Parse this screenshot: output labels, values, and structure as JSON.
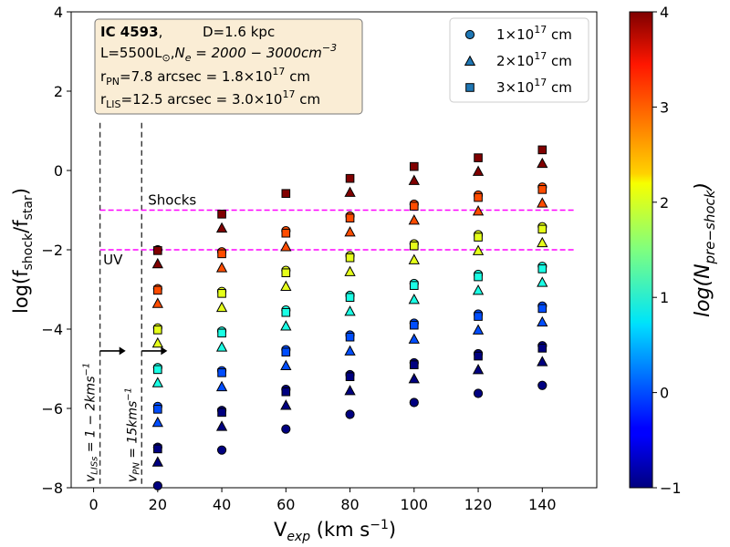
{
  "chart_data": {
    "type": "scatter",
    "x_values": [
      20,
      40,
      60,
      80,
      100,
      120,
      140
    ],
    "xlabel": "Vexp (km s−1)",
    "xlabel_parts": {
      "main": "V",
      "sub": "exp",
      "unit": " (km s",
      "unit_sup": "−1",
      "close": ")"
    },
    "ylabel_parts": {
      "pre": "log(f",
      "sub1": "shock",
      "mid": "/f",
      "sub2": "star",
      "close": ")"
    },
    "xlim": [
      -7,
      157
    ],
    "ylim": [
      -8,
      4
    ],
    "xticks": [
      0,
      20,
      40,
      60,
      80,
      100,
      120,
      140
    ],
    "yticks": [
      -8,
      -6,
      -4,
      -2,
      0,
      2,
      4
    ],
    "xtick_labels": [
      "0",
      "20",
      "40",
      "60",
      "80",
      "100",
      "120",
      "140"
    ],
    "ytick_labels": [
      "−8",
      "−6",
      "−4",
      "−2",
      "0",
      "2",
      "4"
    ],
    "colorbar": {
      "range": [
        -1,
        4
      ],
      "ticks": [
        -1,
        0,
        1,
        2,
        3,
        4
      ],
      "tick_labels": [
        "−1",
        "0",
        "1",
        "2",
        "3",
        "4"
      ],
      "label": "log(Npre−shock)",
      "colormap": "jet"
    },
    "series": [
      {
        "name": "1×10^17 cm",
        "marker": "circle",
        "points": [
          {
            "x": 20,
            "y": -7.95,
            "c": -1
          },
          {
            "x": 20,
            "y": -6.98,
            "c": -1
          },
          {
            "x": 20,
            "y": -5.95,
            "c": 0
          },
          {
            "x": 20,
            "y": -4.97,
            "c": 1
          },
          {
            "x": 20,
            "y": -3.97,
            "c": 2
          },
          {
            "x": 20,
            "y": -2.98,
            "c": 3
          },
          {
            "x": 20,
            "y": -2.0,
            "c": 4
          },
          {
            "x": 40,
            "y": -7.05,
            "c": -1
          },
          {
            "x": 40,
            "y": -6.05,
            "c": -1
          },
          {
            "x": 40,
            "y": -5.05,
            "c": 0
          },
          {
            "x": 40,
            "y": -4.05,
            "c": 1
          },
          {
            "x": 40,
            "y": -3.05,
            "c": 2
          },
          {
            "x": 40,
            "y": -2.05,
            "c": 3
          },
          {
            "x": 60,
            "y": -6.52,
            "c": -1
          },
          {
            "x": 60,
            "y": -5.52,
            "c": -1
          },
          {
            "x": 60,
            "y": -4.52,
            "c": 0
          },
          {
            "x": 60,
            "y": -3.52,
            "c": 1
          },
          {
            "x": 60,
            "y": -2.52,
            "c": 2
          },
          {
            "x": 60,
            "y": -1.52,
            "c": 3
          },
          {
            "x": 80,
            "y": -6.15,
            "c": -1
          },
          {
            "x": 80,
            "y": -5.15,
            "c": -1
          },
          {
            "x": 80,
            "y": -4.15,
            "c": 0
          },
          {
            "x": 80,
            "y": -3.15,
            "c": 1
          },
          {
            "x": 80,
            "y": -2.15,
            "c": 2
          },
          {
            "x": 80,
            "y": -1.15,
            "c": 3
          },
          {
            "x": 100,
            "y": -5.85,
            "c": -1
          },
          {
            "x": 100,
            "y": -4.85,
            "c": -1
          },
          {
            "x": 100,
            "y": -3.85,
            "c": 0
          },
          {
            "x": 100,
            "y": -2.85,
            "c": 1
          },
          {
            "x": 100,
            "y": -1.85,
            "c": 2
          },
          {
            "x": 100,
            "y": -0.85,
            "c": 3
          },
          {
            "x": 120,
            "y": -5.62,
            "c": -1
          },
          {
            "x": 120,
            "y": -4.62,
            "c": -1
          },
          {
            "x": 120,
            "y": -3.62,
            "c": 0
          },
          {
            "x": 120,
            "y": -2.62,
            "c": 1
          },
          {
            "x": 120,
            "y": -1.62,
            "c": 2
          },
          {
            "x": 120,
            "y": -0.62,
            "c": 3
          },
          {
            "x": 140,
            "y": -5.42,
            "c": -1
          },
          {
            "x": 140,
            "y": -4.42,
            "c": -1
          },
          {
            "x": 140,
            "y": -3.42,
            "c": 0
          },
          {
            "x": 140,
            "y": -2.42,
            "c": 1
          },
          {
            "x": 140,
            "y": -1.42,
            "c": 2
          },
          {
            "x": 140,
            "y": -0.42,
            "c": 3
          }
        ]
      },
      {
        "name": "2×10^17 cm",
        "marker": "triangle",
        "points": [
          {
            "x": 20,
            "y": -7.35,
            "c": -1
          },
          {
            "x": 20,
            "y": -6.35,
            "c": 0
          },
          {
            "x": 20,
            "y": -5.35,
            "c": 1
          },
          {
            "x": 20,
            "y": -4.35,
            "c": 2
          },
          {
            "x": 20,
            "y": -3.35,
            "c": 3
          },
          {
            "x": 20,
            "y": -2.35,
            "c": 4
          },
          {
            "x": 40,
            "y": -6.45,
            "c": -1
          },
          {
            "x": 40,
            "y": -5.45,
            "c": 0
          },
          {
            "x": 40,
            "y": -4.45,
            "c": 1
          },
          {
            "x": 40,
            "y": -3.45,
            "c": 2
          },
          {
            "x": 40,
            "y": -2.45,
            "c": 3
          },
          {
            "x": 40,
            "y": -1.45,
            "c": 4
          },
          {
            "x": 60,
            "y": -5.92,
            "c": -1
          },
          {
            "x": 60,
            "y": -4.92,
            "c": 0
          },
          {
            "x": 60,
            "y": -3.92,
            "c": 1
          },
          {
            "x": 60,
            "y": -2.92,
            "c": 2
          },
          {
            "x": 60,
            "y": -1.92,
            "c": 3
          },
          {
            "x": 80,
            "y": -5.55,
            "c": -1
          },
          {
            "x": 80,
            "y": -4.55,
            "c": 0
          },
          {
            "x": 80,
            "y": -3.55,
            "c": 1
          },
          {
            "x": 80,
            "y": -2.55,
            "c": 2
          },
          {
            "x": 80,
            "y": -1.55,
            "c": 3
          },
          {
            "x": 80,
            "y": -0.55,
            "c": 4
          },
          {
            "x": 100,
            "y": -5.25,
            "c": -1
          },
          {
            "x": 100,
            "y": -4.25,
            "c": 0
          },
          {
            "x": 100,
            "y": -3.25,
            "c": 1
          },
          {
            "x": 100,
            "y": -2.25,
            "c": 2
          },
          {
            "x": 100,
            "y": -1.25,
            "c": 3
          },
          {
            "x": 100,
            "y": -0.25,
            "c": 4
          },
          {
            "x": 120,
            "y": -5.02,
            "c": -1
          },
          {
            "x": 120,
            "y": -4.02,
            "c": 0
          },
          {
            "x": 120,
            "y": -3.02,
            "c": 1
          },
          {
            "x": 120,
            "y": -2.02,
            "c": 2
          },
          {
            "x": 120,
            "y": -1.02,
            "c": 3
          },
          {
            "x": 120,
            "y": -0.02,
            "c": 4
          },
          {
            "x": 140,
            "y": -4.82,
            "c": -1
          },
          {
            "x": 140,
            "y": -3.82,
            "c": 0
          },
          {
            "x": 140,
            "y": -2.82,
            "c": 1
          },
          {
            "x": 140,
            "y": -1.82,
            "c": 2
          },
          {
            "x": 140,
            "y": -0.82,
            "c": 3
          },
          {
            "x": 140,
            "y": 0.18,
            "c": 4
          }
        ]
      },
      {
        "name": "3×10^17 cm",
        "marker": "square",
        "points": [
          {
            "x": 20,
            "y": -7.02,
            "c": -1
          },
          {
            "x": 20,
            "y": -6.02,
            "c": 0
          },
          {
            "x": 20,
            "y": -5.02,
            "c": 1
          },
          {
            "x": 20,
            "y": -4.02,
            "c": 2
          },
          {
            "x": 20,
            "y": -3.02,
            "c": 3
          },
          {
            "x": 20,
            "y": -2.02,
            "c": 4
          },
          {
            "x": 40,
            "y": -6.1,
            "c": -1
          },
          {
            "x": 40,
            "y": -5.1,
            "c": 0
          },
          {
            "x": 40,
            "y": -4.1,
            "c": 1
          },
          {
            "x": 40,
            "y": -3.1,
            "c": 2
          },
          {
            "x": 40,
            "y": -2.1,
            "c": 3
          },
          {
            "x": 40,
            "y": -1.1,
            "c": 4
          },
          {
            "x": 60,
            "y": -5.58,
            "c": -1
          },
          {
            "x": 60,
            "y": -4.58,
            "c": 0
          },
          {
            "x": 60,
            "y": -3.58,
            "c": 1
          },
          {
            "x": 60,
            "y": -2.58,
            "c": 2
          },
          {
            "x": 60,
            "y": -1.58,
            "c": 3
          },
          {
            "x": 60,
            "y": -0.58,
            "c": 4
          },
          {
            "x": 80,
            "y": -5.2,
            "c": -1
          },
          {
            "x": 80,
            "y": -4.2,
            "c": 0
          },
          {
            "x": 80,
            "y": -3.2,
            "c": 1
          },
          {
            "x": 80,
            "y": -2.2,
            "c": 2
          },
          {
            "x": 80,
            "y": -1.2,
            "c": 3
          },
          {
            "x": 80,
            "y": -0.2,
            "c": 4
          },
          {
            "x": 100,
            "y": -4.9,
            "c": -1
          },
          {
            "x": 100,
            "y": -3.9,
            "c": 0
          },
          {
            "x": 100,
            "y": -2.9,
            "c": 1
          },
          {
            "x": 100,
            "y": -1.9,
            "c": 2
          },
          {
            "x": 100,
            "y": -0.9,
            "c": 3
          },
          {
            "x": 100,
            "y": 0.1,
            "c": 4
          },
          {
            "x": 120,
            "y": -4.68,
            "c": -1
          },
          {
            "x": 120,
            "y": -3.68,
            "c": 0
          },
          {
            "x": 120,
            "y": -2.68,
            "c": 1
          },
          {
            "x": 120,
            "y": -1.68,
            "c": 2
          },
          {
            "x": 120,
            "y": -0.68,
            "c": 3
          },
          {
            "x": 120,
            "y": 0.32,
            "c": 4
          },
          {
            "x": 140,
            "y": -4.48,
            "c": -1
          },
          {
            "x": 140,
            "y": -3.48,
            "c": 0
          },
          {
            "x": 140,
            "y": -2.48,
            "c": 1
          },
          {
            "x": 140,
            "y": -1.48,
            "c": 2
          },
          {
            "x": 140,
            "y": -0.48,
            "c": 3
          },
          {
            "x": 140,
            "y": 0.52,
            "c": 4
          }
        ]
      }
    ],
    "hlines": [
      {
        "y": -1,
        "color": "#ff00ff",
        "style": "dashed",
        "label": "Shocks",
        "label_x": 17
      },
      {
        "y": -2,
        "color": "#ff00ff",
        "style": "dashed",
        "label": "UV",
        "label_x": 3
      }
    ],
    "hline_xrange": [
      2,
      150
    ],
    "vlines": [
      {
        "x": 2,
        "label": "vLISs = 1 − 2kms−1",
        "label_parts": {
          "v": "v",
          "sub": "LISs",
          "text": " = 1 − 2kms",
          "sup": "−1"
        }
      },
      {
        "x": 15,
        "label": "vPN = 15kms−1",
        "label_parts": {
          "v": "v",
          "sub": "PN",
          "text": " = 15kms",
          "sup": "−1"
        }
      }
    ],
    "arrows": [
      {
        "x_from": 2,
        "x_to": 10,
        "y": -4.55
      },
      {
        "x_from": 15,
        "x_to": 23,
        "y": -4.55
      }
    ],
    "info_box": {
      "name": "IC 4593",
      "distance": "D=1.6 kpc",
      "lum": "L=5500L",
      "ne_main": "N",
      "ne_sub": "e",
      "ne_rest": " = 2000 − 3000cm",
      "ne_sup": "−3",
      "rpn_main": "r",
      "rpn_sub": "PN",
      "rpn_rest": "=7.8 arcsec  = 1.8×10",
      "rpn_exp": "17",
      "rpn_unit": " cm",
      "rlis_main": "r",
      "rlis_sub": "LIS",
      "rlis_rest": "=12.5 arcsec = 3.0×10",
      "rlis_exp": "17",
      "rlis_unit": " cm"
    },
    "legend": {
      "position": "top-right",
      "entries": [
        {
          "marker": "circle",
          "base": "1×10",
          "exp": "17",
          "unit": " cm"
        },
        {
          "marker": "triangle",
          "base": "2×10",
          "exp": "17",
          "unit": " cm"
        },
        {
          "marker": "square",
          "base": "3×10",
          "exp": "17",
          "unit": " cm"
        }
      ],
      "marker_color": "#1f77b4"
    }
  }
}
